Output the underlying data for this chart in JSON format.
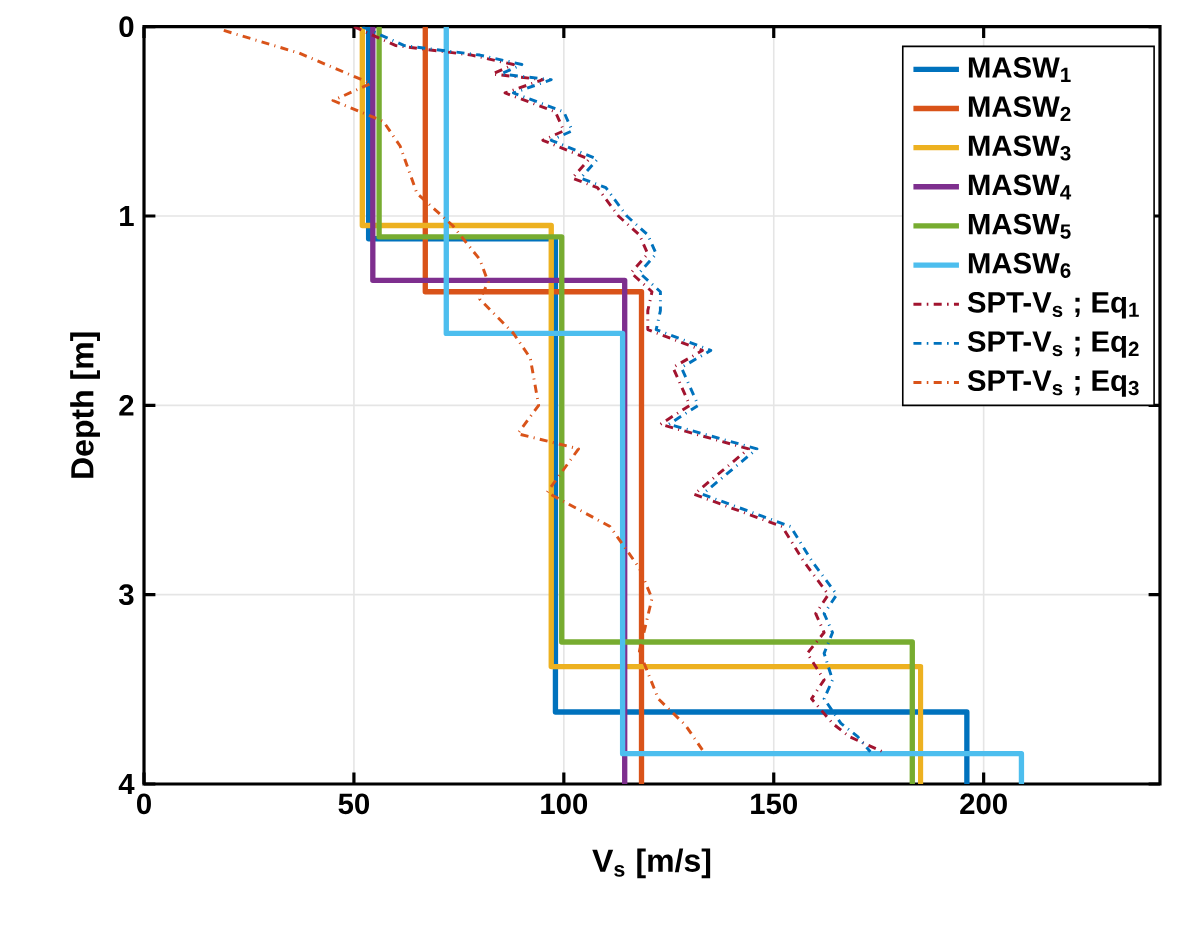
{
  "chart_data": {
    "type": "line",
    "xlabel": "V$_{s}$ [m/s]",
    "ylabel": "Depth [m]",
    "xlim": [
      0,
      242
    ],
    "ylim": [
      4,
      0
    ],
    "xticks": [
      0,
      50,
      100,
      150,
      200
    ],
    "yticks": [
      0,
      1,
      2,
      3,
      4
    ],
    "grid": true,
    "legend": "top right",
    "series": [
      {
        "name": "MASW$_{1}$",
        "color": "#0072bd",
        "line_style": "solid",
        "x": [
          53.5,
          53.5,
          98,
          98,
          196,
          196
        ],
        "values": [
          0,
          1.12,
          1.12,
          3.62,
          3.62,
          4
        ]
      },
      {
        "name": "MASW$_{2}$",
        "color": "#d95319",
        "line_style": "solid",
        "x": [
          67,
          67,
          118.5,
          118.5
        ],
        "values": [
          0,
          1.4,
          1.4,
          4
        ]
      },
      {
        "name": "MASW$_{3}$",
        "color": "#edb120",
        "line_style": "solid",
        "x": [
          52,
          52,
          97,
          97,
          185,
          185
        ],
        "values": [
          0,
          1.05,
          1.05,
          3.38,
          3.38,
          4
        ]
      },
      {
        "name": "MASW$_{4}$",
        "color": "#7e2f8e",
        "line_style": "solid",
        "x": [
          54.5,
          54.5,
          114.5,
          114.5
        ],
        "values": [
          0,
          1.34,
          1.34,
          4
        ]
      },
      {
        "name": "MASW$_{5}$",
        "color": "#77ac30",
        "line_style": "solid",
        "x": [
          56,
          56,
          99.5,
          99.5,
          183,
          183
        ],
        "values": [
          0,
          1.11,
          1.11,
          3.25,
          3.25,
          4
        ]
      },
      {
        "name": "MASW$_{6}$",
        "color": "#4dbeee",
        "line_style": "solid",
        "x": [
          72,
          72,
          114,
          114,
          209,
          209
        ],
        "values": [
          0,
          1.62,
          1.62,
          3.84,
          3.84,
          4
        ]
      },
      {
        "name": "SPT-V$_{s}$ ; Eq$_{1}$",
        "color": "#a2142f",
        "line_style": "dashdot",
        "x": [
          50,
          60,
          78,
          88,
          83,
          95,
          86,
          98,
          100,
          95,
          106,
          102,
          108,
          113,
          118,
          120,
          116,
          121,
          120,
          120,
          133,
          126,
          128,
          130,
          123,
          144,
          131,
          152,
          157,
          163,
          160,
          162,
          158,
          162,
          159,
          164,
          168,
          176
        ],
        "values": [
          0,
          0.1,
          0.15,
          0.2,
          0.25,
          0.28,
          0.35,
          0.45,
          0.55,
          0.6,
          0.7,
          0.8,
          0.85,
          1.0,
          1.1,
          1.2,
          1.3,
          1.4,
          1.5,
          1.6,
          1.71,
          1.8,
          1.9,
          2.0,
          2.1,
          2.23,
          2.47,
          2.64,
          2.82,
          3.0,
          3.1,
          3.2,
          3.31,
          3.45,
          3.55,
          3.68,
          3.75,
          3.83
        ]
      },
      {
        "name": "SPT-V$_{s}$ ; Eq$_{2}$",
        "color": "#0072bd",
        "line_style": "dashdot",
        "x": [
          52,
          62,
          80,
          90,
          85,
          97,
          88,
          100,
          102,
          97,
          108,
          104,
          110,
          115,
          120,
          122,
          118,
          123,
          123,
          122,
          135,
          128,
          130,
          132,
          125,
          146,
          133,
          154,
          159,
          165,
          162,
          164,
          162,
          164,
          162,
          166,
          170,
          173
        ],
        "values": [
          0,
          0.1,
          0.15,
          0.2,
          0.25,
          0.28,
          0.35,
          0.45,
          0.55,
          0.6,
          0.7,
          0.8,
          0.85,
          1.0,
          1.1,
          1.2,
          1.3,
          1.4,
          1.5,
          1.6,
          1.71,
          1.8,
          1.9,
          2.0,
          2.1,
          2.23,
          2.47,
          2.64,
          2.82,
          3.0,
          3.1,
          3.2,
          3.31,
          3.45,
          3.55,
          3.68,
          3.75,
          3.83
        ]
      },
      {
        "name": "SPT-V$_{s}$ ; Eq$_{3}$",
        "color": "#d95319",
        "line_style": "dashdot",
        "x": [
          19,
          37,
          54,
          45,
          57,
          61,
          65,
          73.5,
          80,
          82,
          80,
          88,
          92,
          94,
          89,
          103.5,
          96,
          111,
          118,
          121,
          118,
          122.5,
          129,
          133
        ],
        "values": [
          0.02,
          0.14,
          0.3,
          0.39,
          0.5,
          0.63,
          0.88,
          1.05,
          1.23,
          1.35,
          1.44,
          1.62,
          1.75,
          2.0,
          2.15,
          2.23,
          2.46,
          2.64,
          2.86,
          3.02,
          3.3,
          3.55,
          3.69,
          3.82
        ]
      }
    ]
  }
}
